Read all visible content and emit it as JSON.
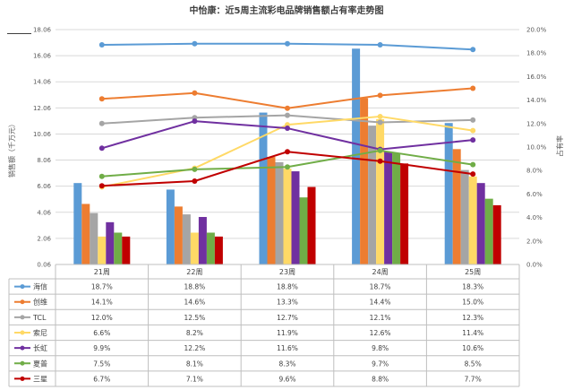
{
  "chart_data": {
    "type": "bar+line",
    "title": "中怡康：近5周主流彩电品牌销售额占有率走势图",
    "categories": [
      "21周",
      "22周",
      "23周",
      "24周",
      "25周"
    ],
    "ylabel_left": "销售额（千万元）",
    "ylabel_right": "占有率",
    "ylim_left": [
      0.06,
      18.06
    ],
    "ylim_right": [
      0,
      20
    ],
    "y_left_ticks": [
      "0.06",
      "2.06",
      "4.06",
      "6.06",
      "8.06",
      "10.06",
      "12.06",
      "14.06",
      "16.06",
      "18.06"
    ],
    "y_right_ticks": [
      "0.0%",
      "2.0%",
      "4.0%",
      "6.0%",
      "8.0%",
      "10.0%",
      "12.0%",
      "14.0%",
      "16.0%",
      "18.0%",
      "20.0%"
    ],
    "grid": true,
    "legend": "bottom",
    "series": [
      {
        "name": "海信",
        "color": "#5B9BD5",
        "sales": [
          6.3,
          5.8,
          11.7,
          16.6,
          10.9
        ],
        "share": [
          18.7,
          18.8,
          18.8,
          18.7,
          18.3
        ]
      },
      {
        "name": "创维",
        "color": "#ED7D31",
        "sales": [
          4.7,
          4.5,
          8.3,
          12.8,
          8.9
        ],
        "share": [
          14.1,
          14.6,
          13.3,
          14.4,
          15.0
        ]
      },
      {
        "name": "TCL",
        "color": "#A5A5A5",
        "sales": [
          4.0,
          3.9,
          7.9,
          10.7,
          7.3
        ],
        "share": [
          12.0,
          12.5,
          12.7,
          12.1,
          12.3
        ]
      },
      {
        "name": "索尼",
        "color": "#FFD966",
        "sales": [
          2.2,
          2.5,
          7.4,
          11.2,
          6.8
        ],
        "share": [
          6.6,
          8.2,
          11.9,
          12.6,
          11.4
        ]
      },
      {
        "name": "长虹",
        "color": "#7030A0",
        "sales": [
          3.3,
          3.7,
          7.2,
          8.7,
          6.3
        ],
        "share": [
          9.9,
          12.2,
          11.6,
          9.8,
          10.6
        ]
      },
      {
        "name": "夏普",
        "color": "#70AD47",
        "sales": [
          2.5,
          2.5,
          5.2,
          8.6,
          5.1
        ],
        "share": [
          7.5,
          8.1,
          8.3,
          9.7,
          8.5
        ]
      },
      {
        "name": "三星",
        "color": "#C00000",
        "sales": [
          2.2,
          2.2,
          6.0,
          7.8,
          4.6
        ],
        "share": [
          6.7,
          7.1,
          9.6,
          8.8,
          7.7
        ]
      }
    ],
    "data_table": [
      [
        "18.7%",
        "18.8%",
        "18.8%",
        "18.7%",
        "18.3%"
      ],
      [
        "14.1%",
        "14.6%",
        "13.3%",
        "14.4%",
        "15.0%"
      ],
      [
        "12.0%",
        "12.5%",
        "12.7%",
        "12.1%",
        "12.3%"
      ],
      [
        "6.6%",
        "8.2%",
        "11.9%",
        "12.6%",
        "11.4%"
      ],
      [
        "9.9%",
        "12.2%",
        "11.6%",
        "9.8%",
        "10.6%"
      ],
      [
        "7.5%",
        "8.1%",
        "8.3%",
        "9.7%",
        "8.5%"
      ],
      [
        "6.7%",
        "7.1%",
        "9.6%",
        "8.8%",
        "7.7%"
      ]
    ]
  }
}
